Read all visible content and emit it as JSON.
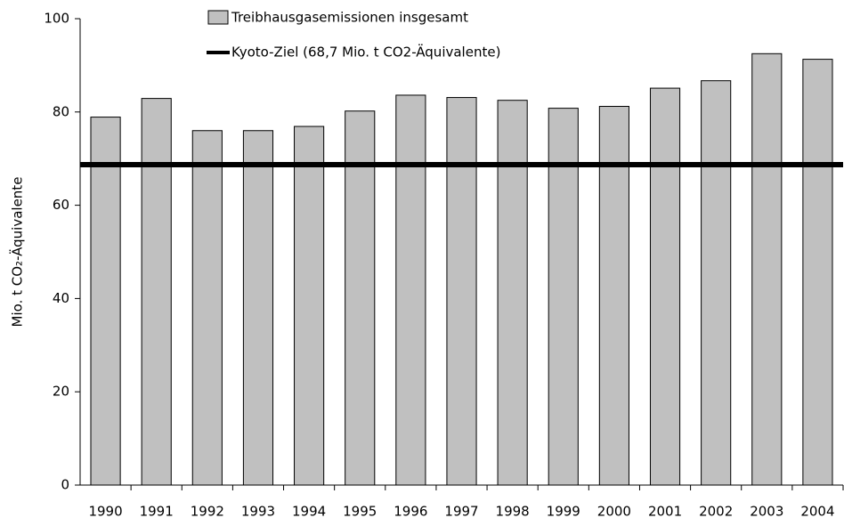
{
  "chart_data": {
    "type": "bar",
    "ylabel": "Mio. t CO₂-Äquivalente",
    "categories": [
      "1990",
      "1991",
      "1992",
      "1993",
      "1994",
      "1995",
      "1996",
      "1997",
      "1998",
      "1999",
      "2000",
      "2001",
      "2002",
      "2003",
      "2004"
    ],
    "series": [
      {
        "name": "Treibhausgasemissionen insgesamt",
        "color": "#c0c0c0",
        "values": [
          78.9,
          82.9,
          76.0,
          76.0,
          76.9,
          80.2,
          83.6,
          83.1,
          82.5,
          80.8,
          81.2,
          85.1,
          86.7,
          92.5,
          91.3
        ]
      }
    ],
    "target_line": {
      "name": "Kyoto-Ziel (68,7 Mio. t CO2-Äquivalente)",
      "value": 68.7,
      "color": "#000000"
    },
    "ylim": [
      0,
      100
    ],
    "yticks": [
      0,
      20,
      40,
      60,
      80,
      100
    ],
    "grid": false
  }
}
